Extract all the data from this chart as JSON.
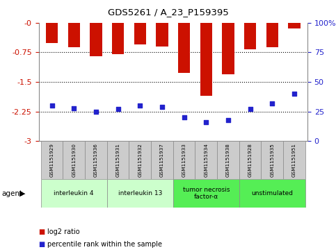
{
  "title": "GDS5261 / A_23_P159395",
  "samples": [
    "GSM1151929",
    "GSM1151930",
    "GSM1151936",
    "GSM1151931",
    "GSM1151932",
    "GSM1151937",
    "GSM1151933",
    "GSM1151934",
    "GSM1151938",
    "GSM1151928",
    "GSM1151935",
    "GSM1151951"
  ],
  "log2_ratio": [
    -0.52,
    -0.62,
    -0.85,
    -0.8,
    -0.55,
    -0.6,
    -1.28,
    -1.85,
    -1.3,
    -0.68,
    -0.63,
    -0.15
  ],
  "percentile_rank": [
    30,
    28,
    25,
    27,
    30,
    29,
    20,
    16,
    18,
    27,
    32,
    40
  ],
  "ylim_left": [
    -3,
    0
  ],
  "ylim_right": [
    0,
    100
  ],
  "yticks_left": [
    0,
    -0.75,
    -1.5,
    -2.25,
    -3
  ],
  "ytick_labels_left": [
    "-0",
    "-0.75",
    "-1.5",
    "-2.25",
    "-3"
  ],
  "yticks_right": [
    0,
    25,
    50,
    75,
    100
  ],
  "ytick_labels_right": [
    "0",
    "25",
    "50",
    "75",
    "100%"
  ],
  "bar_color": "#cc1100",
  "dot_color": "#2222cc",
  "bar_width": 0.55,
  "groups": [
    {
      "label": "interleukin 4",
      "start": 0,
      "end": 3,
      "color": "#ccffcc"
    },
    {
      "label": "interleukin 13",
      "start": 3,
      "end": 6,
      "color": "#ccffcc"
    },
    {
      "label": "tumor necrosis\nfactor-α",
      "start": 6,
      "end": 9,
      "color": "#55ee55"
    },
    {
      "label": "unstimulated",
      "start": 9,
      "end": 12,
      "color": "#55ee55"
    }
  ],
  "agent_label": "agent",
  "legend_red_label": "log2 ratio",
  "legend_blue_label": "percentile rank within the sample",
  "legend_red_color": "#cc1100",
  "legend_blue_color": "#2222cc",
  "bg_color": "#ffffff",
  "plot_bg": "#ffffff",
  "tick_color_left": "#cc1100",
  "tick_color_right": "#2222cc",
  "grid_color": "black",
  "grid_linestyle": "dotted",
  "grid_linewidth": 0.8,
  "grid_yvals": [
    -0.75,
    -1.5,
    -2.25
  ],
  "sample_box_color": "#cccccc",
  "sample_box_edgecolor": "#888888",
  "border_color": "#888888"
}
